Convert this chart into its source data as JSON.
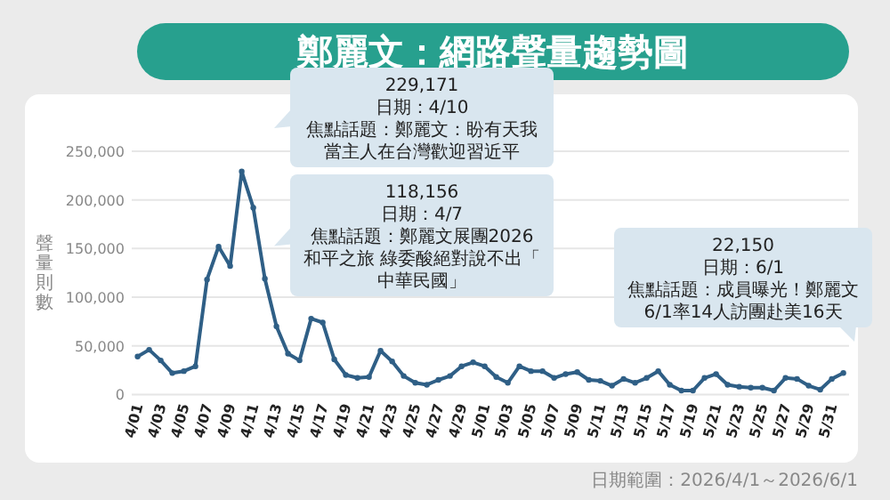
{
  "chart_data": {
    "type": "line",
    "title": "鄭麗文：網路聲量趨勢圖",
    "ylabel": "聲量則數",
    "categories": [
      "4/01",
      null,
      "4/03",
      null,
      "4/05",
      null,
      "4/07",
      null,
      "4/09",
      null,
      "4/11",
      null,
      "4/13",
      null,
      "4/15",
      null,
      "4/17",
      null,
      "4/19",
      null,
      "4/21",
      null,
      "4/23",
      null,
      "4/25",
      null,
      "4/27",
      null,
      "4/29",
      null,
      "5/01",
      null,
      "5/03",
      null,
      "5/05",
      null,
      "5/07",
      null,
      "5/09",
      null,
      "5/11",
      null,
      "5/13",
      null,
      "5/15",
      null,
      "5/17",
      null,
      "5/19",
      null,
      "5/21",
      null,
      "5/23",
      null,
      "5/25",
      null,
      "5/27",
      null,
      "5/29",
      null,
      "5/31",
      null
    ],
    "values": [
      39000,
      46000,
      35000,
      22000,
      24000,
      29000,
      118156,
      152000,
      132000,
      229171,
      192000,
      119000,
      70000,
      42000,
      35000,
      78000,
      74000,
      36000,
      20000,
      17000,
      18000,
      45000,
      34000,
      19000,
      12000,
      10000,
      15000,
      19000,
      29000,
      33000,
      29000,
      18000,
      12000,
      29000,
      24000,
      24000,
      17000,
      21000,
      23000,
      15000,
      14000,
      9000,
      16000,
      12000,
      17000,
      24000,
      10000,
      4000,
      4000,
      17000,
      21000,
      10000,
      8000,
      7000,
      7000,
      4000,
      17000,
      16000,
      9000,
      5000,
      16000,
      22150
    ],
    "color": "#2f5f86",
    "marker": "circle",
    "grid": "y",
    "ylim": [
      0,
      250000
    ],
    "yticks": [
      {
        "value": 0,
        "label": "0"
      },
      {
        "value": 50000,
        "label": "50,000"
      },
      {
        "value": 100000,
        "label": "100,000"
      },
      {
        "value": 150000,
        "label": "150,000"
      },
      {
        "value": 200000,
        "label": "200,000"
      },
      {
        "value": 250000,
        "label": "250,000"
      }
    ],
    "annotations": [
      "229,171",
      "日期：4/10",
      "焦點話題：鄭麗文：盼有天我當主人在台灣歡迎習近平",
      "118,156",
      "日期：4/7",
      "焦點話題：鄭麗文展團2026和平之旅 綠委酸絕對說不出「中華民國」",
      "22,150",
      "日期：6/1",
      "焦點話題：成員曝光！鄭麗文6/1率14人訪團赴美16天",
      "日期範圍：2026/4/1～2026/6/1"
    ]
  }
}
